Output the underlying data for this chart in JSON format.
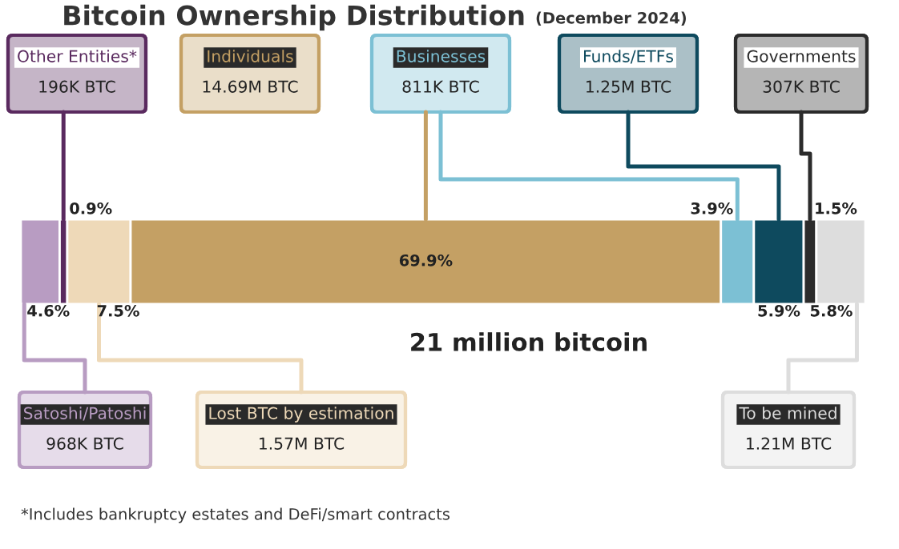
{
  "chart_data": {
    "type": "bar",
    "orientation": "horizontal",
    "stacked": true,
    "title": "Bitcoin Ownership Distribution",
    "subtitle": "(December 2024)",
    "categories": [
      null
    ],
    "series": [
      {
        "name": "Satoshi/Patoshi",
        "color": "#b89cc2",
        "values": [
          4.6
        ],
        "value_labels": [
          "4.6%"
        ]
      },
      {
        "name": "Other Entities*",
        "color": "#5a2a5f",
        "values": [
          0.9
        ],
        "value_labels": [
          "0.9%"
        ]
      },
      {
        "name": "Lost BTC by estimation",
        "color": "#eed9b8",
        "values": [
          7.5
        ],
        "value_labels": [
          "7.5%"
        ]
      },
      {
        "name": "Individuals",
        "color": "#c4a064",
        "values": [
          69.9
        ],
        "value_labels": [
          "69.9%"
        ]
      },
      {
        "name": "Businesses",
        "color": "#7cc0d4",
        "values": [
          3.9
        ],
        "value_labels": [
          "3.9%"
        ]
      },
      {
        "name": "Funds/ETFs",
        "color": "#0e4a5e",
        "values": [
          5.9
        ],
        "value_labels": [
          "5.9%"
        ]
      },
      {
        "name": "Governments",
        "color": "#2b2b2b",
        "values": [
          1.5
        ],
        "value_labels": [
          "1.5%"
        ]
      },
      {
        "name": "To be mined",
        "color": "#dddddd",
        "values": [
          5.8
        ],
        "value_labels": [
          "5.8%"
        ]
      }
    ],
    "annotations": [
      "968K BTC",
      "196K BTC",
      "1.57M BTC",
      "14.69M BTC",
      "811K BTC",
      "1.25M BTC",
      "307K BTC",
      "1.21M BTC",
      "21 million bitcoin",
      "*Includes bankruptcy estates and DeFi/smart contracts"
    ],
    "legend": false
  }
}
